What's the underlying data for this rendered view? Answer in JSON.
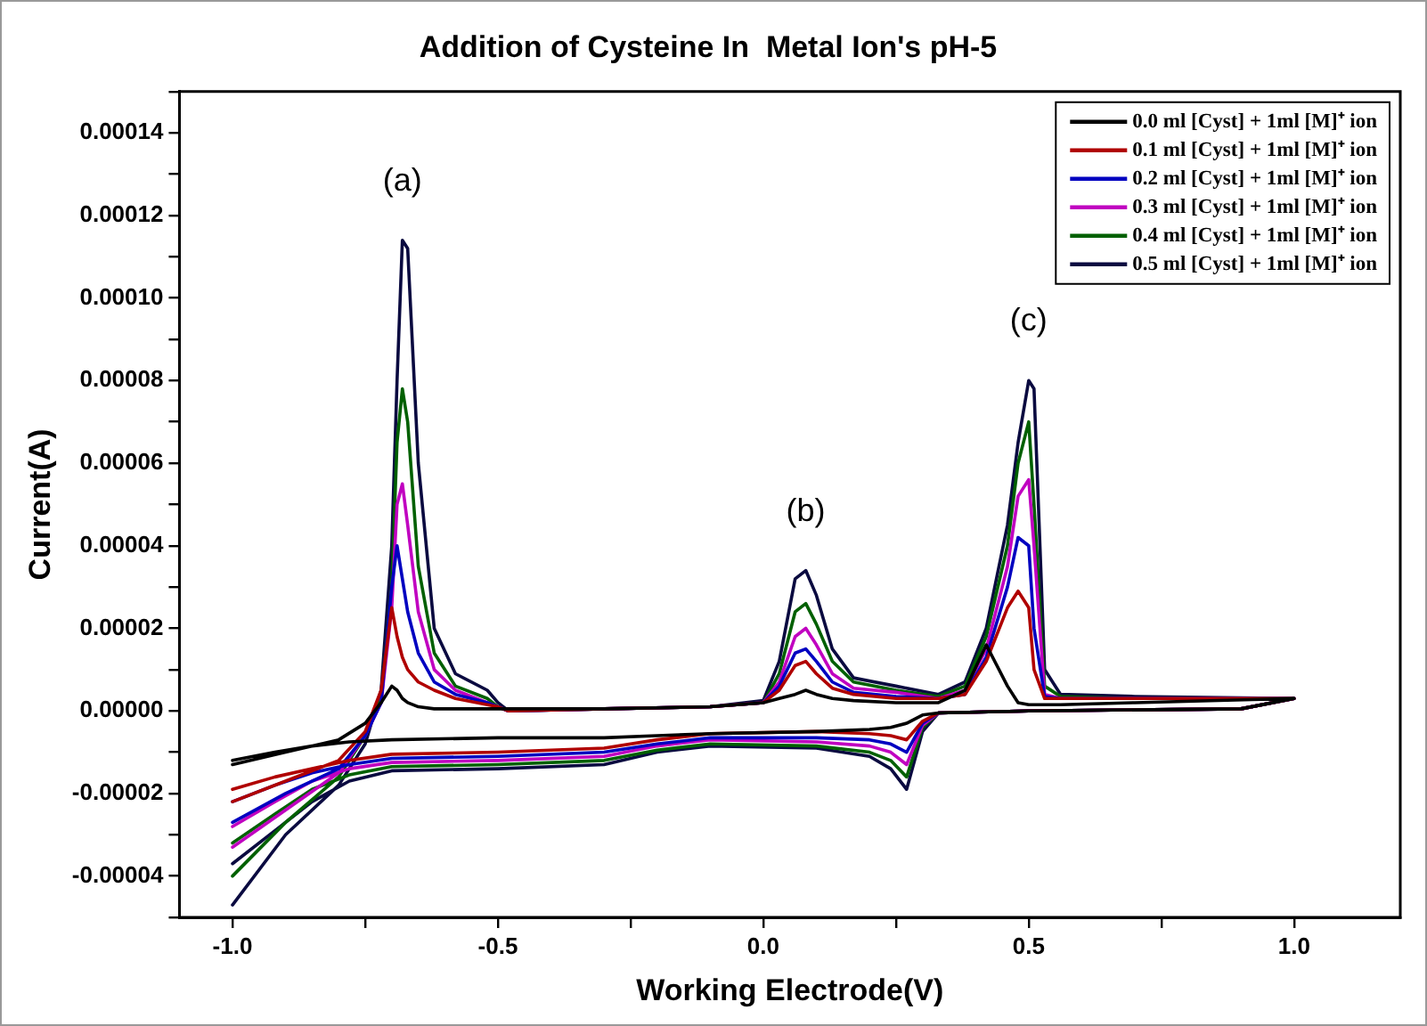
{
  "chart_data": {
    "type": "line",
    "title": "Addition of Cysteine In  Metal Ion's pH-5",
    "xlabel": "Working Electrode(V)",
    "ylabel": "Current(A)",
    "xlim": [
      -1.1,
      1.2
    ],
    "xticks": [
      {
        "value": -1,
        "label": "-1.0"
      },
      {
        "value": -0.75,
        "label": null
      },
      {
        "value": -0.5,
        "label": "-0.5"
      },
      {
        "value": -0.25,
        "label": null
      },
      {
        "value": 0,
        "label": "0.0"
      },
      {
        "value": 0.25,
        "label": null
      },
      {
        "value": 0.5,
        "label": "0.5"
      },
      {
        "value": 0.75,
        "label": null
      },
      {
        "value": 1,
        "label": "1.0"
      }
    ],
    "ylim": [
      -5e-05,
      0.00015
    ],
    "yticks": [
      {
        "value": -5e-05,
        "label": null
      },
      {
        "value": -4e-05,
        "label": "-0.00004"
      },
      {
        "value": -3e-05,
        "label": null
      },
      {
        "value": -2e-05,
        "label": "-0.00002"
      },
      {
        "value": -1e-05,
        "label": null
      },
      {
        "value": 0,
        "label": "0.00000"
      },
      {
        "value": 1e-05,
        "label": null
      },
      {
        "value": 2e-05,
        "label": "0.00002"
      },
      {
        "value": 3e-05,
        "label": null
      },
      {
        "value": 4e-05,
        "label": "0.00004"
      },
      {
        "value": 5e-05,
        "label": null
      },
      {
        "value": 6e-05,
        "label": "0.00006"
      },
      {
        "value": 7e-05,
        "label": null
      },
      {
        "value": 8e-05,
        "label": "0.00008"
      },
      {
        "value": 9e-05,
        "label": null
      },
      {
        "value": 0.0001,
        "label": "0.00010"
      },
      {
        "value": 0.00011,
        "label": null
      },
      {
        "value": 0.00012,
        "label": "0.00012"
      },
      {
        "value": 0.00013,
        "label": null
      },
      {
        "value": 0.00014,
        "label": "0.00014"
      },
      {
        "value": 0.00015,
        "label": null
      }
    ],
    "x": [
      -1.0,
      -0.9,
      -0.8,
      -0.75,
      -0.72,
      -0.7,
      -0.69,
      -0.68,
      -0.67,
      -0.65,
      -0.62,
      -0.58,
      -0.52,
      -0.5,
      -0.48,
      -0.3,
      -0.1,
      0.0,
      0.03,
      0.06,
      0.08,
      0.1,
      0.13,
      0.17,
      0.25,
      0.33,
      0.38,
      0.42,
      0.46,
      0.48,
      0.5,
      0.51,
      0.53,
      0.56,
      0.7,
      1.0,
      0.9,
      0.5,
      0.33,
      0.3,
      0.27,
      0.24,
      0.2,
      0.1,
      -0.1,
      -0.2,
      -0.3,
      -0.5,
      -0.7,
      -0.78,
      -0.85,
      -0.92,
      -1.0
    ],
    "series": [
      {
        "name": "0.0 ml [Cyst] + 1ml [M]⁺ ion",
        "color": "#000000",
        "values": [
          -1.3e-05,
          -1e-05,
          -7e-06,
          -3e-06,
          2e-06,
          6e-06,
          5e-06,
          3e-06,
          2e-06,
          1e-06,
          5e-07,
          5e-07,
          5e-07,
          5e-07,
          5e-07,
          5e-07,
          1e-06,
          2e-06,
          3e-06,
          4e-06,
          5e-06,
          4e-06,
          3e-06,
          2.5e-06,
          2e-06,
          2e-06,
          5e-06,
          1.6e-05,
          6e-06,
          2e-06,
          1.5e-06,
          1.5e-06,
          1.5e-06,
          1.5e-06,
          2e-06,
          3e-06,
          5e-07,
          0,
          -5e-07,
          -1e-06,
          -3e-06,
          -4e-06,
          -4.5e-06,
          -5e-06,
          -5.5e-06,
          -6e-06,
          -6.5e-06,
          -6.5e-06,
          -7e-06,
          -7.5e-06,
          -8.5e-06,
          -1e-05,
          -1.2e-05
        ]
      },
      {
        "name": "0.1 ml [Cyst] + 1ml [M]⁺ ion",
        "color": "#b00000",
        "values": [
          -2.2e-05,
          -1.7e-05,
          -1.2e-05,
          -5e-06,
          5e-06,
          2.5e-05,
          1.8e-05,
          1.3e-05,
          1e-05,
          7e-06,
          5e-06,
          3e-06,
          1.5e-06,
          1e-06,
          0,
          5e-07,
          1e-06,
          2e-06,
          5e-06,
          1.1e-05,
          1.2e-05,
          9e-06,
          5.5e-06,
          4e-06,
          3e-06,
          3e-06,
          4e-06,
          1.2e-05,
          2.5e-05,
          2.9e-05,
          2.5e-05,
          1e-05,
          3e-06,
          3e-06,
          3e-06,
          3e-06,
          5e-07,
          0,
          -5e-07,
          -2.5e-06,
          -7e-06,
          -6e-06,
          -5.5e-06,
          -5e-06,
          -5.5e-06,
          -7e-06,
          -9e-06,
          -1e-05,
          -1.05e-05,
          -1.2e-05,
          -1.4e-05,
          -1.6e-05,
          -1.9e-05
        ]
      },
      {
        "name": "0.2 ml [Cyst] + 1ml [M]⁺ ion",
        "color": "#0000c0",
        "values": [
          -2.7e-05,
          -2e-05,
          -1.4e-05,
          -6e-06,
          2e-06,
          3e-05,
          4e-05,
          3.2e-05,
          2.4e-05,
          1.4e-05,
          7e-06,
          4e-06,
          2e-06,
          1e-06,
          0,
          5e-07,
          1e-06,
          2e-06,
          6e-06,
          1.4e-05,
          1.5e-05,
          1.2e-05,
          7e-06,
          4.5e-06,
          3.5e-06,
          3e-06,
          4e-06,
          1.3e-05,
          3e-05,
          4.2e-05,
          4e-05,
          2e-05,
          3.5e-06,
          3e-06,
          3e-06,
          3e-06,
          5e-07,
          0,
          -5e-07,
          -3e-06,
          -1e-05,
          -8e-06,
          -7e-06,
          -6.5e-06,
          -6.5e-06,
          -8e-06,
          -1e-05,
          -1.1e-05,
          -1.15e-05,
          -1.3e-05,
          -1.5e-05,
          -1.8e-05,
          -2.2e-05
        ]
      },
      {
        "name": "0.3 ml [Cyst] + 1ml [M]⁺ ion",
        "color": "#c000c0",
        "values": [
          -3.3e-05,
          -2.4e-05,
          -1.5e-05,
          -6e-06,
          2e-06,
          2.5e-05,
          5e-05,
          5.5e-05,
          4.5e-05,
          2.4e-05,
          1e-05,
          5e-06,
          2e-06,
          1e-06,
          0,
          5e-07,
          1e-06,
          2e-06,
          7e-06,
          1.8e-05,
          2e-05,
          1.6e-05,
          9e-06,
          5.5e-06,
          4.5e-06,
          3e-06,
          5e-06,
          1.5e-05,
          3.5e-05,
          5.2e-05,
          5.6e-05,
          4e-05,
          4e-06,
          3e-06,
          3e-06,
          3e-06,
          5e-07,
          0,
          -5e-07,
          -3.5e-06,
          -1.3e-05,
          -1e-05,
          -8.5e-06,
          -7.5e-06,
          -7e-06,
          -8.5e-06,
          -1.1e-05,
          -1.2e-05,
          -1.25e-05,
          -1.4e-05,
          -1.7e-05,
          -2.2e-05,
          -2.8e-05
        ]
      },
      {
        "name": "0.4 ml [Cyst] + 1ml [M]⁺ ion",
        "color": "#006000",
        "values": [
          -4e-05,
          -2.7e-05,
          -1.6e-05,
          -6e-06,
          3e-06,
          3e-05,
          6.5e-05,
          7.8e-05,
          7e-05,
          3.5e-05,
          1.4e-05,
          6e-06,
          3e-06,
          1e-06,
          0,
          5e-07,
          1e-06,
          2e-06,
          9e-06,
          2.4e-05,
          2.6e-05,
          2.1e-05,
          1.2e-05,
          7e-06,
          5e-06,
          3.5e-06,
          6e-06,
          1.8e-05,
          4e-05,
          6e-05,
          7e-05,
          5e-05,
          6e-06,
          3.5e-06,
          3e-06,
          3e-06,
          5e-07,
          0,
          -5e-07,
          -4e-06,
          -1.6e-05,
          -1.2e-05,
          -1e-05,
          -8.5e-06,
          -8e-06,
          -9.5e-06,
          -1.2e-05,
          -1.3e-05,
          -1.35e-05,
          -1.55e-05,
          -1.9e-05,
          -2.5e-05,
          -3.2e-05
        ]
      },
      {
        "name": "0.5 ml [Cyst] + 1ml [M]⁺ ion",
        "color": "#0a0a40",
        "values": [
          -4.7e-05,
          -3e-05,
          -1.8e-05,
          -8e-06,
          5e-06,
          4e-05,
          8e-05,
          0.000114,
          0.000112,
          6e-05,
          2e-05,
          9e-06,
          5e-06,
          2e-06,
          0,
          5e-07,
          1e-06,
          2.5e-06,
          1.2e-05,
          3.2e-05,
          3.4e-05,
          2.8e-05,
          1.5e-05,
          8e-06,
          6e-06,
          4e-06,
          7e-06,
          2e-05,
          4.5e-05,
          6.5e-05,
          8e-05,
          7.8e-05,
          1e-05,
          4e-06,
          3.5e-06,
          3e-06,
          5e-07,
          0,
          -5e-07,
          -5e-06,
          -1.9e-05,
          -1.4e-05,
          -1.1e-05,
          -9e-06,
          -8.5e-06,
          -1e-05,
          -1.3e-05,
          -1.4e-05,
          -1.45e-05,
          -1.7e-05,
          -2.2e-05,
          -2.9e-05,
          -3.7e-05
        ]
      }
    ],
    "annotations": [
      {
        "text": "(a)",
        "x": -0.68,
        "y": 0.000114
      },
      {
        "text": "(b)",
        "x": 0.08,
        "y": 3.4e-05
      },
      {
        "text": "(c)",
        "x": 0.5,
        "y": 8e-05
      }
    ],
    "legend": "top right",
    "grid": false,
    "marker": "none",
    "line_style": "solid"
  }
}
